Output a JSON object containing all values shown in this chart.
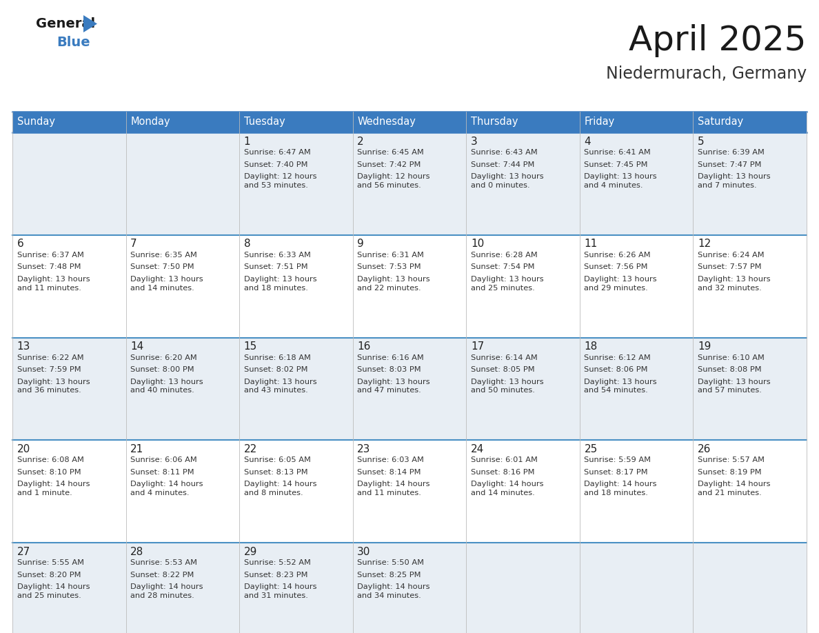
{
  "title": "April 2025",
  "subtitle": "Niedermurach, Germany",
  "header_color": "#3a7bbf",
  "header_text_color": "#ffffff",
  "cell_bg_light": "#e8eef4",
  "cell_bg_white": "#ffffff",
  "border_color": "#3a7bbf",
  "row_line_color": "#4a90c4",
  "text_color": "#333333",
  "day_number_color": "#222222",
  "days_of_week": [
    "Sunday",
    "Monday",
    "Tuesday",
    "Wednesday",
    "Thursday",
    "Friday",
    "Saturday"
  ],
  "logo_general_color": "#1a1a1a",
  "logo_blue_color": "#3a7bbf",
  "logo_triangle_color": "#3a7bbf",
  "title_color": "#1a1a1a",
  "subtitle_color": "#333333",
  "weeks": [
    [
      {
        "day": "",
        "sunrise": "",
        "sunset": "",
        "daylight": ""
      },
      {
        "day": "",
        "sunrise": "",
        "sunset": "",
        "daylight": ""
      },
      {
        "day": "1",
        "sunrise": "Sunrise: 6:47 AM",
        "sunset": "Sunset: 7:40 PM",
        "daylight": "Daylight: 12 hours\nand 53 minutes."
      },
      {
        "day": "2",
        "sunrise": "Sunrise: 6:45 AM",
        "sunset": "Sunset: 7:42 PM",
        "daylight": "Daylight: 12 hours\nand 56 minutes."
      },
      {
        "day": "3",
        "sunrise": "Sunrise: 6:43 AM",
        "sunset": "Sunset: 7:44 PM",
        "daylight": "Daylight: 13 hours\nand 0 minutes."
      },
      {
        "day": "4",
        "sunrise": "Sunrise: 6:41 AM",
        "sunset": "Sunset: 7:45 PM",
        "daylight": "Daylight: 13 hours\nand 4 minutes."
      },
      {
        "day": "5",
        "sunrise": "Sunrise: 6:39 AM",
        "sunset": "Sunset: 7:47 PM",
        "daylight": "Daylight: 13 hours\nand 7 minutes."
      }
    ],
    [
      {
        "day": "6",
        "sunrise": "Sunrise: 6:37 AM",
        "sunset": "Sunset: 7:48 PM",
        "daylight": "Daylight: 13 hours\nand 11 minutes."
      },
      {
        "day": "7",
        "sunrise": "Sunrise: 6:35 AM",
        "sunset": "Sunset: 7:50 PM",
        "daylight": "Daylight: 13 hours\nand 14 minutes."
      },
      {
        "day": "8",
        "sunrise": "Sunrise: 6:33 AM",
        "sunset": "Sunset: 7:51 PM",
        "daylight": "Daylight: 13 hours\nand 18 minutes."
      },
      {
        "day": "9",
        "sunrise": "Sunrise: 6:31 AM",
        "sunset": "Sunset: 7:53 PM",
        "daylight": "Daylight: 13 hours\nand 22 minutes."
      },
      {
        "day": "10",
        "sunrise": "Sunrise: 6:28 AM",
        "sunset": "Sunset: 7:54 PM",
        "daylight": "Daylight: 13 hours\nand 25 minutes."
      },
      {
        "day": "11",
        "sunrise": "Sunrise: 6:26 AM",
        "sunset": "Sunset: 7:56 PM",
        "daylight": "Daylight: 13 hours\nand 29 minutes."
      },
      {
        "day": "12",
        "sunrise": "Sunrise: 6:24 AM",
        "sunset": "Sunset: 7:57 PM",
        "daylight": "Daylight: 13 hours\nand 32 minutes."
      }
    ],
    [
      {
        "day": "13",
        "sunrise": "Sunrise: 6:22 AM",
        "sunset": "Sunset: 7:59 PM",
        "daylight": "Daylight: 13 hours\nand 36 minutes."
      },
      {
        "day": "14",
        "sunrise": "Sunrise: 6:20 AM",
        "sunset": "Sunset: 8:00 PM",
        "daylight": "Daylight: 13 hours\nand 40 minutes."
      },
      {
        "day": "15",
        "sunrise": "Sunrise: 6:18 AM",
        "sunset": "Sunset: 8:02 PM",
        "daylight": "Daylight: 13 hours\nand 43 minutes."
      },
      {
        "day": "16",
        "sunrise": "Sunrise: 6:16 AM",
        "sunset": "Sunset: 8:03 PM",
        "daylight": "Daylight: 13 hours\nand 47 minutes."
      },
      {
        "day": "17",
        "sunrise": "Sunrise: 6:14 AM",
        "sunset": "Sunset: 8:05 PM",
        "daylight": "Daylight: 13 hours\nand 50 minutes."
      },
      {
        "day": "18",
        "sunrise": "Sunrise: 6:12 AM",
        "sunset": "Sunset: 8:06 PM",
        "daylight": "Daylight: 13 hours\nand 54 minutes."
      },
      {
        "day": "19",
        "sunrise": "Sunrise: 6:10 AM",
        "sunset": "Sunset: 8:08 PM",
        "daylight": "Daylight: 13 hours\nand 57 minutes."
      }
    ],
    [
      {
        "day": "20",
        "sunrise": "Sunrise: 6:08 AM",
        "sunset": "Sunset: 8:10 PM",
        "daylight": "Daylight: 14 hours\nand 1 minute."
      },
      {
        "day": "21",
        "sunrise": "Sunrise: 6:06 AM",
        "sunset": "Sunset: 8:11 PM",
        "daylight": "Daylight: 14 hours\nand 4 minutes."
      },
      {
        "day": "22",
        "sunrise": "Sunrise: 6:05 AM",
        "sunset": "Sunset: 8:13 PM",
        "daylight": "Daylight: 14 hours\nand 8 minutes."
      },
      {
        "day": "23",
        "sunrise": "Sunrise: 6:03 AM",
        "sunset": "Sunset: 8:14 PM",
        "daylight": "Daylight: 14 hours\nand 11 minutes."
      },
      {
        "day": "24",
        "sunrise": "Sunrise: 6:01 AM",
        "sunset": "Sunset: 8:16 PM",
        "daylight": "Daylight: 14 hours\nand 14 minutes."
      },
      {
        "day": "25",
        "sunrise": "Sunrise: 5:59 AM",
        "sunset": "Sunset: 8:17 PM",
        "daylight": "Daylight: 14 hours\nand 18 minutes."
      },
      {
        "day": "26",
        "sunrise": "Sunrise: 5:57 AM",
        "sunset": "Sunset: 8:19 PM",
        "daylight": "Daylight: 14 hours\nand 21 minutes."
      }
    ],
    [
      {
        "day": "27",
        "sunrise": "Sunrise: 5:55 AM",
        "sunset": "Sunset: 8:20 PM",
        "daylight": "Daylight: 14 hours\nand 25 minutes."
      },
      {
        "day": "28",
        "sunrise": "Sunrise: 5:53 AM",
        "sunset": "Sunset: 8:22 PM",
        "daylight": "Daylight: 14 hours\nand 28 minutes."
      },
      {
        "day": "29",
        "sunrise": "Sunrise: 5:52 AM",
        "sunset": "Sunset: 8:23 PM",
        "daylight": "Daylight: 14 hours\nand 31 minutes."
      },
      {
        "day": "30",
        "sunrise": "Sunrise: 5:50 AM",
        "sunset": "Sunset: 8:25 PM",
        "daylight": "Daylight: 14 hours\nand 34 minutes."
      },
      {
        "day": "",
        "sunrise": "",
        "sunset": "",
        "daylight": ""
      },
      {
        "day": "",
        "sunrise": "",
        "sunset": "",
        "daylight": ""
      },
      {
        "day": "",
        "sunrise": "",
        "sunset": "",
        "daylight": ""
      }
    ]
  ]
}
